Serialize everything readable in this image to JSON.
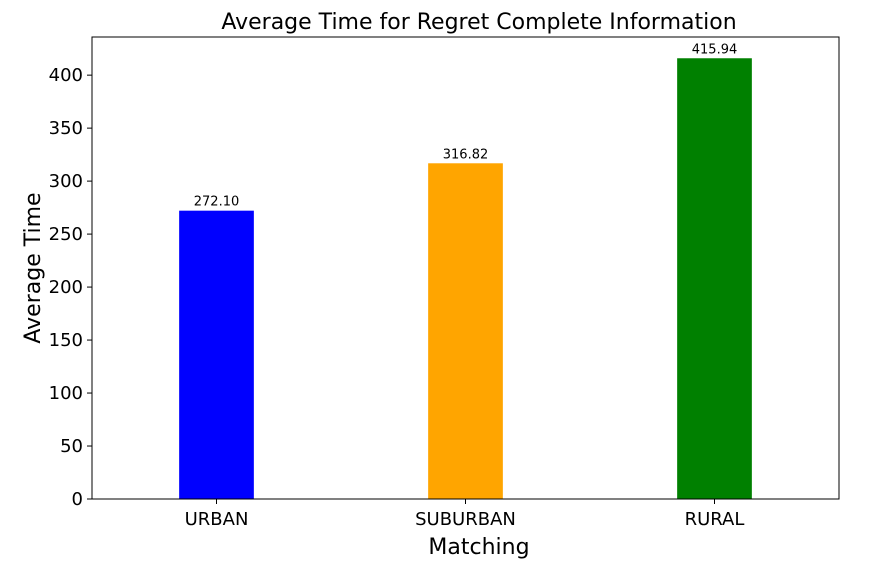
{
  "chart_data": {
    "type": "bar",
    "title": "Average Time for Regret Complete Information",
    "xlabel": "Matching",
    "ylabel": "Average Time",
    "categories": [
      "URBAN",
      "SUBURBAN",
      "RURAL"
    ],
    "values": [
      272.1,
      316.82,
      415.94
    ],
    "value_labels": [
      "272.10",
      "316.82",
      "415.94"
    ],
    "colors": [
      "#0000ff",
      "#ffa500",
      "#008000"
    ],
    "ylim": [
      0,
      436
    ],
    "yticks": [
      0,
      50,
      100,
      150,
      200,
      250,
      300,
      350,
      400
    ],
    "grid": false,
    "legend": "none"
  }
}
